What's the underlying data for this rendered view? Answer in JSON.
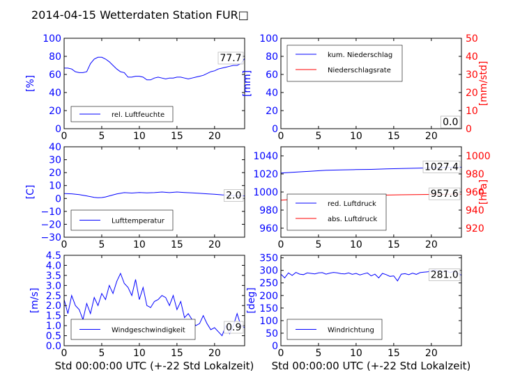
{
  "title": "2014-04-15 Wetterdaten Station FUR□",
  "colors": {
    "blue": "#0000ff",
    "red": "#ff0000",
    "frame": "#000000"
  },
  "chart_data": [
    {
      "id": "humidity",
      "type": "line",
      "xlim": [
        0,
        24
      ],
      "ylim": [
        0,
        100
      ],
      "xticks": [
        0,
        5,
        10,
        15,
        20
      ],
      "yticks": [
        0,
        20,
        40,
        60,
        80,
        100
      ],
      "ylabel": "[%]",
      "ylabel_color": "blue",
      "xlabel": "",
      "last_value_label": "77.7",
      "legend_loc": "lower-left",
      "series": [
        {
          "name": "rel. Luftfeuchte",
          "color": "blue",
          "x": [
            0,
            0.5,
            1,
            1.5,
            2,
            2.5,
            3,
            3.5,
            4,
            4.5,
            5,
            5.5,
            6,
            6.5,
            7,
            7.5,
            8,
            8.5,
            9,
            9.5,
            10,
            10.5,
            11,
            11.5,
            12,
            12.5,
            13,
            13.5,
            14,
            14.5,
            15,
            15.5,
            16,
            16.5,
            17,
            17.5,
            18,
            18.5,
            19,
            19.5,
            20,
            20.5,
            21,
            21.5,
            22,
            22.5,
            23,
            23.5,
            24
          ],
          "y": [
            67,
            67,
            66,
            63,
            62,
            62,
            63,
            72,
            77,
            79,
            79,
            77,
            74,
            70,
            66,
            63,
            62,
            57,
            57,
            58,
            58,
            57,
            54,
            54,
            56,
            57,
            56,
            55,
            56,
            56,
            57,
            57,
            56,
            55,
            56,
            57,
            58,
            59,
            61,
            63,
            64,
            66,
            67,
            68,
            69,
            70,
            70,
            72,
            77.7
          ]
        }
      ]
    },
    {
      "id": "precipitation",
      "type": "line",
      "xlim": [
        0,
        24
      ],
      "ylim": [
        0,
        100
      ],
      "ylim_right": [
        0,
        50
      ],
      "xticks": [
        0,
        5,
        10,
        15,
        20
      ],
      "yticks": [
        0,
        20,
        40,
        60,
        80,
        100
      ],
      "yticks_right": [
        0,
        10,
        20,
        30,
        40,
        50
      ],
      "ylabel": "[mm]",
      "ylabel_color": "blue",
      "ylabel_right": "[mm/std]",
      "ylabel_right_color": "red",
      "xlabel": "",
      "last_value_label": "0.0",
      "last_value_label_2": "0.0",
      "legend_loc": "upper-left",
      "series": [
        {
          "name": "kum. Niederschlag",
          "color": "blue",
          "axis": "left",
          "x": [
            0,
            24
          ],
          "y": [
            0,
            0
          ]
        },
        {
          "name": "Niederschlagsrate",
          "color": "red",
          "axis": "right",
          "x": [
            0,
            24
          ],
          "y": [
            0,
            0
          ]
        }
      ]
    },
    {
      "id": "temperature",
      "type": "line",
      "xlim": [
        0,
        24
      ],
      "ylim": [
        -30,
        40
      ],
      "xticks": [
        0,
        5,
        10,
        15,
        20
      ],
      "yticks": [
        -30,
        -20,
        -10,
        0,
        10,
        20,
        30,
        40
      ],
      "ylabel": "[C]",
      "ylabel_color": "blue",
      "xlabel": "",
      "last_value_label": "2.0",
      "legend_loc": "lower-left",
      "series": [
        {
          "name": "Lufttemperatur",
          "color": "blue",
          "x": [
            0,
            1,
            2,
            3,
            4,
            4.5,
            5,
            5.5,
            6,
            7,
            8,
            9,
            10,
            11,
            12,
            13,
            14,
            15,
            16,
            17,
            18,
            19,
            20,
            21,
            22,
            23,
            24
          ],
          "y": [
            3.8,
            3.6,
            3,
            2,
            0.8,
            0.6,
            0.7,
            1.2,
            2,
            3.5,
            4.5,
            4.2,
            4.6,
            4.3,
            4.5,
            5,
            4.5,
            5,
            4.6,
            4.3,
            4,
            3.6,
            3.2,
            2.8,
            2.5,
            2.2,
            2.0
          ]
        }
      ]
    },
    {
      "id": "pressure",
      "type": "line",
      "xlim": [
        0,
        24
      ],
      "ylim": [
        950,
        1050
      ],
      "ylim_right": [
        910,
        1010
      ],
      "xticks": [
        0,
        5,
        10,
        15,
        20
      ],
      "yticks": [
        960,
        980,
        1000,
        1020,
        1040
      ],
      "yticks_right": [
        920,
        940,
        960,
        980,
        1000
      ],
      "ylabel": "",
      "ylabel_right": "[hPa]",
      "ylabel_right_color": "red",
      "xlabel": "",
      "last_value_label": "1027.4",
      "last_value_label_2": "957.6",
      "legend_loc": "lower-left",
      "series": [
        {
          "name": "red. Luftdruck",
          "color": "blue",
          "axis": "left",
          "x": [
            0,
            2,
            4,
            6,
            8,
            10,
            12,
            14,
            16,
            18,
            20,
            22,
            24
          ],
          "y": [
            1021,
            1022,
            1023,
            1024,
            1024.5,
            1024.8,
            1025,
            1025.5,
            1026,
            1026.3,
            1026.8,
            1027.1,
            1027.4
          ]
        },
        {
          "name": "abs. Luftdruck",
          "color": "red",
          "axis": "right",
          "x": [
            0,
            2,
            4,
            6,
            8,
            10,
            12,
            14,
            16,
            18,
            20,
            22,
            24
          ],
          "y": [
            951,
            952,
            953,
            954.5,
            955.2,
            955.8,
            956.2,
            956.6,
            956.9,
            957.1,
            957.3,
            957.5,
            957.6
          ]
        }
      ]
    },
    {
      "id": "windspeed",
      "type": "line",
      "xlim": [
        0,
        24
      ],
      "ylim": [
        0,
        4.5
      ],
      "xticks": [
        0,
        5,
        10,
        15,
        20
      ],
      "yticks": [
        0.0,
        0.5,
        1.0,
        1.5,
        2.0,
        2.5,
        3.0,
        3.5,
        4.0,
        4.5
      ],
      "ytick_labels": [
        "0.0",
        "0.5",
        "1.0",
        "1.5",
        "2.0",
        "2.5",
        "3.0",
        "3.5",
        "4.0",
        "4.5"
      ],
      "ylabel": "[m/s]",
      "ylabel_color": "blue",
      "xlabel": "Std 00:00:00 UTC (+-22 Std Lokalzeit)",
      "last_value_label": "0.9",
      "legend_loc": "lower-center",
      "series": [
        {
          "name": "Windgeschwindigkeit",
          "color": "blue",
          "x": [
            0,
            0.5,
            1,
            1.5,
            2,
            2.5,
            3,
            3.5,
            4,
            4.5,
            5,
            5.5,
            6,
            6.5,
            7,
            7.5,
            8,
            8.5,
            9,
            9.5,
            10,
            10.5,
            11,
            11.5,
            12,
            12.5,
            13,
            13.5,
            14,
            14.5,
            15,
            15.5,
            16,
            16.5,
            17,
            17.5,
            18,
            18.5,
            19,
            19.5,
            20,
            20.5,
            21,
            21.5,
            22,
            22.5,
            23,
            23.5,
            24
          ],
          "y": [
            2.3,
            1.6,
            2.5,
            2.0,
            1.8,
            1.3,
            2.1,
            1.6,
            2.4,
            2.0,
            2.6,
            2.3,
            3.0,
            2.6,
            3.2,
            3.6,
            3.1,
            2.9,
            2.5,
            3.3,
            2.3,
            2.9,
            2.0,
            1.9,
            2.2,
            2.3,
            2.5,
            2.4,
            2.0,
            2.5,
            1.8,
            2.2,
            1.4,
            1.6,
            1.3,
            1.0,
            1.1,
            1.5,
            1.1,
            0.8,
            0.9,
            0.7,
            0.5,
            1.0,
            0.6,
            1.0,
            1.6,
            1.0,
            0.9
          ]
        }
      ]
    },
    {
      "id": "winddirection",
      "type": "line",
      "xlim": [
        0,
        24
      ],
      "ylim": [
        0,
        360
      ],
      "xticks": [
        0,
        5,
        10,
        15,
        20
      ],
      "yticks": [
        0,
        50,
        100,
        150,
        200,
        250,
        300,
        350
      ],
      "ylabel": "[deg]",
      "ylabel_color": "blue",
      "xlabel": "Std 00:00:00 UTC (+-22 Std Lokalzeit)",
      "last_value_label": "281.0",
      "legend_loc": "lower-left",
      "series": [
        {
          "name": "Windrichtung",
          "color": "blue",
          "x": [
            0,
            0.5,
            1,
            1.5,
            2,
            2.5,
            3,
            3.5,
            4,
            4.5,
            5,
            5.5,
            6,
            6.5,
            7,
            7.5,
            8,
            8.5,
            9,
            9.5,
            10,
            10.5,
            11,
            11.5,
            12,
            12.5,
            13,
            13.5,
            14,
            14.5,
            15,
            15.5,
            16,
            16.5,
            17,
            17.5,
            18,
            18.5,
            19,
            19.5,
            20,
            20.5,
            21,
            21.5,
            22,
            22.5,
            23,
            23.5,
            24
          ],
          "y": [
            285,
            270,
            290,
            280,
            292,
            285,
            283,
            290,
            288,
            286,
            290,
            291,
            285,
            289,
            292,
            290,
            287,
            286,
            290,
            284,
            288,
            282,
            286,
            290,
            278,
            285,
            270,
            288,
            283,
            276,
            278,
            258,
            285,
            287,
            283,
            289,
            284,
            291,
            293,
            294,
            298,
            302,
            296,
            294,
            299,
            291,
            297,
            288,
            281
          ]
        }
      ]
    }
  ]
}
